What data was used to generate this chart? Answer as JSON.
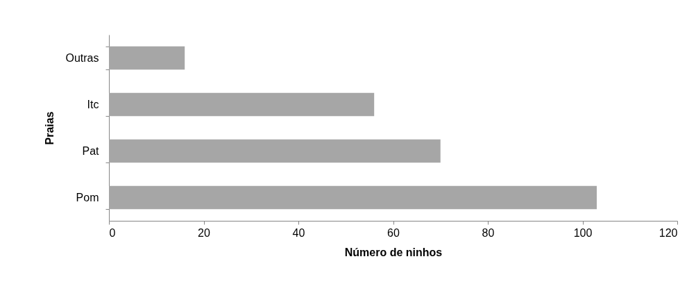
{
  "chart_data": {
    "type": "bar",
    "orientation": "horizontal",
    "xlabel": "Número de ninhos",
    "ylabel": "Praias",
    "categories": [
      "Outras",
      "Itc",
      "Pat",
      "Pom"
    ],
    "values": [
      16,
      56,
      70,
      103
    ],
    "color": "#a6a6a6",
    "xlim": [
      0,
      120
    ],
    "xticks": [
      0,
      20,
      40,
      60,
      80,
      100,
      120
    ],
    "grid": false
  }
}
